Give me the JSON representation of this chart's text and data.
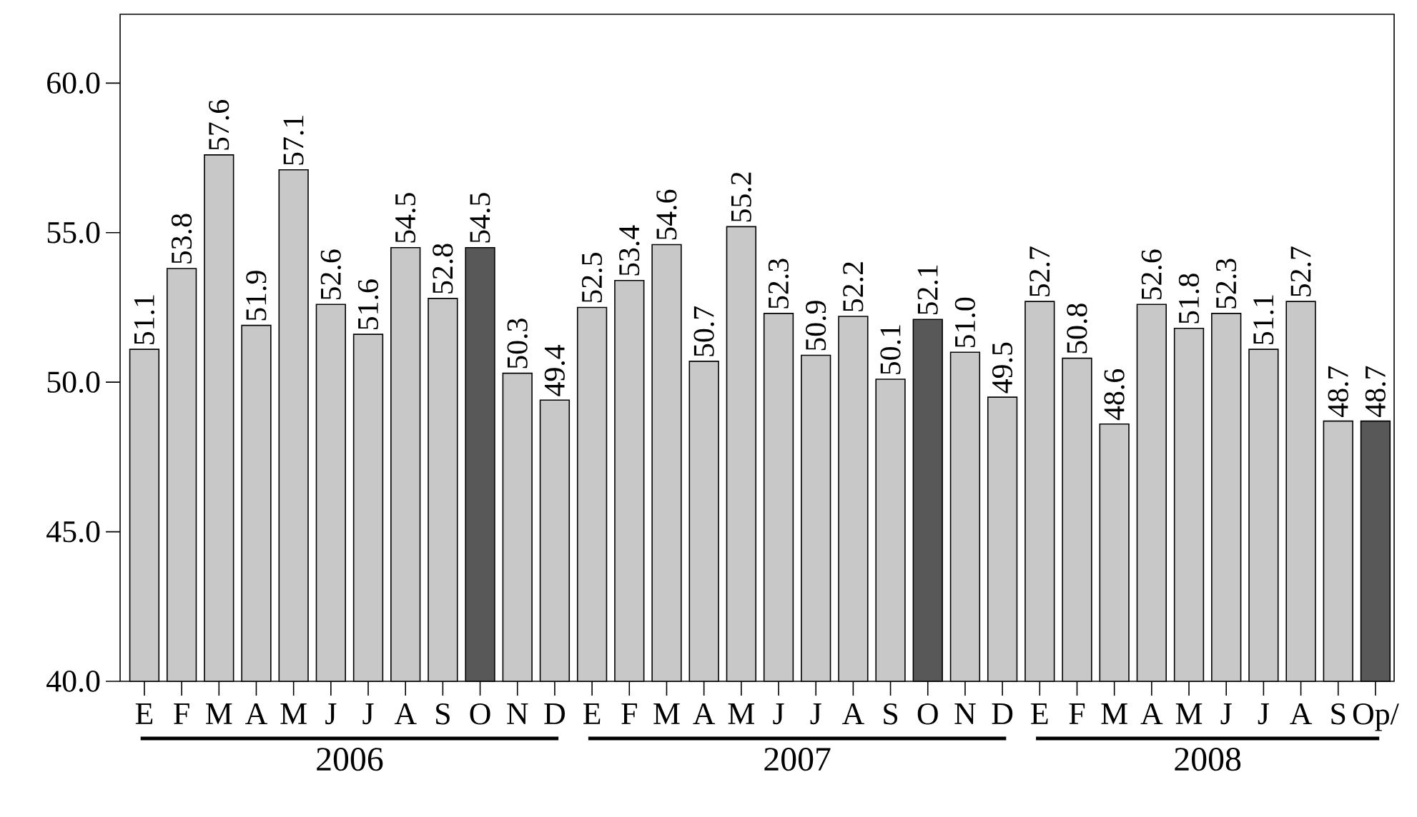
{
  "chart_data": {
    "type": "bar",
    "categories": [
      "E",
      "F",
      "M",
      "A",
      "M",
      "J",
      "J",
      "A",
      "S",
      "O",
      "N",
      "D",
      "E",
      "F",
      "M",
      "A",
      "M",
      "J",
      "J",
      "A",
      "S",
      "O",
      "N",
      "D",
      "E",
      "F",
      "M",
      "A",
      "M",
      "J",
      "J",
      "A",
      "S",
      "Op/"
    ],
    "values": [
      51.1,
      53.8,
      57.6,
      51.9,
      57.1,
      52.6,
      51.6,
      54.5,
      52.8,
      54.5,
      50.3,
      49.4,
      52.5,
      53.4,
      54.6,
      50.7,
      55.2,
      52.3,
      50.9,
      52.2,
      50.1,
      52.1,
      51.0,
      49.5,
      52.7,
      50.8,
      48.6,
      52.6,
      51.8,
      52.3,
      51.1,
      52.7,
      48.7,
      48.7
    ],
    "colors": [
      "#c8c8c8",
      "#c8c8c8",
      "#c8c8c8",
      "#c8c8c8",
      "#c8c8c8",
      "#c8c8c8",
      "#c8c8c8",
      "#c8c8c8",
      "#c8c8c8",
      "#585858",
      "#c8c8c8",
      "#c8c8c8",
      "#c8c8c8",
      "#c8c8c8",
      "#c8c8c8",
      "#c8c8c8",
      "#c8c8c8",
      "#c8c8c8",
      "#c8c8c8",
      "#c8c8c8",
      "#c8c8c8",
      "#585858",
      "#c8c8c8",
      "#c8c8c8",
      "#c8c8c8",
      "#c8c8c8",
      "#c8c8c8",
      "#c8c8c8",
      "#c8c8c8",
      "#c8c8c8",
      "#c8c8c8",
      "#c8c8c8",
      "#c8c8c8",
      "#585858"
    ],
    "ylim": [
      40,
      62.3
    ],
    "yticks": [
      {
        "value": 40,
        "label": "40.0"
      },
      {
        "value": 45,
        "label": "45.0"
      },
      {
        "value": 50,
        "label": "50.0"
      },
      {
        "value": 55,
        "label": "55.0"
      },
      {
        "value": 60,
        "label": "60.0"
      }
    ],
    "value_labels": [
      "51.1",
      "53.8",
      "57.6",
      "51.9",
      "57.1",
      "52.6",
      "51.6",
      "54.5",
      "52.8",
      "54.5",
      "50.3",
      "49.4",
      "52.5",
      "53.4",
      "54.6",
      "50.7",
      "55.2",
      "52.3",
      "50.9",
      "52.2",
      "50.1",
      "52.1",
      "51.0",
      "49.5",
      "52.7",
      "50.8",
      "48.6",
      "52.6",
      "51.8",
      "52.3",
      "51.1",
      "52.7",
      "48.7",
      "48.7"
    ],
    "grid": false,
    "annotations": [
      "2006",
      "2007",
      "2008"
    ]
  }
}
